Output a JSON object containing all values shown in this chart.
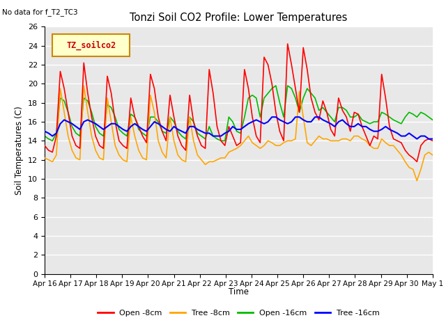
{
  "title": "Tonzi Soil CO2 Profile: Lower Temperatures",
  "subtitle": "No data for f_T2_TC3",
  "xlabel": "Time",
  "ylabel": "Soil Temperatures (C)",
  "ylim": [
    0,
    26
  ],
  "yticks": [
    0,
    2,
    4,
    6,
    8,
    10,
    12,
    14,
    16,
    18,
    20,
    22,
    24,
    26
  ],
  "bg_color": "#e8e8e8",
  "legend_label": "TZ_soilco2",
  "series_labels": [
    "Open -8cm",
    "Tree -8cm",
    "Open -16cm",
    "Tree -16cm"
  ],
  "series_colors": [
    "#ff0000",
    "#ffa500",
    "#00bb00",
    "#0000ff"
  ],
  "xtick_labels": [
    "Apr 16",
    "Apr 17",
    "Apr 18",
    "Apr 19",
    "Apr 20",
    "Apr 21",
    "Apr 22",
    "Apr 23",
    "Apr 24",
    "Apr 25",
    "Apr 26",
    "Apr 27",
    "Apr 28",
    "Apr 29",
    "Apr 30",
    "May 1"
  ],
  "open_8cm": [
    13.5,
    13.0,
    12.8,
    14.5,
    21.3,
    19.5,
    17.0,
    14.5,
    13.5,
    13.2,
    22.2,
    19.0,
    16.5,
    14.5,
    13.5,
    13.2,
    20.8,
    19.0,
    16.0,
    14.0,
    13.5,
    13.2,
    18.5,
    16.5,
    15.5,
    14.5,
    13.8,
    21.0,
    19.5,
    16.5,
    15.0,
    14.0,
    18.8,
    16.5,
    14.5,
    13.5,
    13.0,
    18.8,
    16.0,
    14.5,
    13.5,
    13.2,
    21.5,
    19.0,
    15.5,
    14.0,
    13.5,
    15.5,
    14.5,
    13.5,
    13.8,
    21.5,
    19.5,
    16.5,
    14.5,
    13.8,
    22.8,
    22.0,
    20.0,
    17.0,
    15.0,
    14.0,
    24.2,
    22.0,
    19.5,
    17.0,
    23.8,
    21.5,
    18.5,
    17.0,
    16.2,
    18.2,
    17.0,
    15.2,
    14.5,
    18.5,
    17.2,
    16.5,
    15.0,
    17.0,
    16.8,
    15.5,
    14.5,
    13.5,
    14.5,
    14.2,
    21.0,
    18.5,
    15.5,
    14.2,
    14.0,
    13.8,
    13.0,
    12.5,
    12.2,
    11.8,
    13.5,
    14.0,
    14.2,
    14.0
  ],
  "tree_8cm": [
    12.2,
    12.0,
    11.8,
    12.5,
    19.5,
    17.0,
    14.5,
    13.0,
    12.2,
    12.0,
    19.8,
    17.0,
    14.5,
    13.0,
    12.2,
    12.0,
    18.5,
    16.0,
    13.5,
    12.5,
    12.0,
    11.8,
    16.5,
    14.5,
    13.0,
    12.2,
    12.0,
    18.8,
    17.0,
    14.0,
    12.8,
    12.2,
    16.5,
    14.0,
    12.5,
    12.0,
    11.8,
    16.5,
    14.0,
    12.5,
    12.0,
    11.5,
    11.8,
    11.8,
    12.0,
    12.2,
    12.2,
    12.8,
    13.0,
    13.2,
    13.5,
    14.0,
    14.5,
    13.8,
    13.5,
    13.2,
    13.5,
    14.0,
    13.8,
    13.5,
    13.5,
    13.8,
    14.0,
    14.0,
    14.2,
    19.2,
    16.5,
    13.8,
    13.5,
    14.0,
    14.5,
    14.2,
    14.2,
    14.0,
    14.0,
    14.0,
    14.2,
    14.2,
    14.0,
    14.5,
    14.5,
    14.2,
    14.0,
    13.5,
    13.2,
    13.2,
    14.2,
    13.8,
    13.5,
    13.5,
    13.0,
    12.5,
    11.8,
    11.2,
    11.0,
    9.8,
    11.0,
    12.5,
    12.8,
    12.5
  ],
  "open_16cm": [
    14.5,
    14.2,
    14.0,
    14.8,
    18.5,
    18.2,
    17.0,
    15.5,
    14.8,
    14.5,
    18.5,
    18.2,
    17.0,
    15.5,
    14.8,
    14.5,
    17.8,
    17.5,
    16.5,
    15.2,
    14.8,
    14.5,
    16.8,
    16.5,
    15.2,
    14.8,
    14.5,
    16.5,
    16.5,
    16.0,
    15.0,
    14.8,
    16.5,
    16.0,
    15.0,
    14.5,
    14.2,
    16.5,
    16.0,
    14.8,
    14.5,
    14.2,
    15.5,
    14.5,
    14.2,
    14.0,
    14.0,
    16.5,
    16.0,
    15.0,
    14.8,
    16.5,
    18.5,
    18.8,
    18.5,
    16.5,
    18.5,
    19.0,
    19.5,
    19.8,
    18.0,
    16.5,
    19.8,
    19.5,
    18.5,
    17.0,
    18.5,
    19.5,
    19.0,
    18.5,
    17.2,
    17.5,
    17.0,
    16.5,
    16.0,
    17.5,
    17.5,
    17.2,
    16.5,
    16.5,
    16.8,
    16.2,
    16.0,
    15.8,
    16.0,
    16.0,
    17.0,
    16.8,
    16.5,
    16.2,
    16.0,
    15.8,
    16.5,
    17.0,
    16.8,
    16.5,
    17.0,
    16.8,
    16.5,
    16.2
  ],
  "tree_16cm": [
    15.0,
    14.8,
    14.5,
    14.8,
    15.8,
    16.2,
    16.0,
    15.8,
    15.5,
    15.2,
    16.0,
    16.2,
    16.0,
    15.8,
    15.5,
    15.2,
    15.5,
    15.8,
    15.8,
    15.5,
    15.2,
    15.0,
    15.5,
    15.8,
    15.5,
    15.2,
    15.0,
    15.5,
    16.0,
    15.8,
    15.5,
    15.2,
    15.0,
    15.5,
    15.2,
    15.0,
    14.8,
    15.5,
    15.5,
    15.2,
    15.0,
    14.8,
    14.8,
    14.5,
    14.5,
    14.5,
    14.8,
    15.0,
    15.5,
    15.2,
    15.2,
    15.5,
    15.8,
    16.0,
    16.2,
    16.0,
    15.8,
    16.0,
    16.5,
    16.5,
    16.2,
    16.0,
    15.8,
    16.0,
    16.5,
    16.5,
    16.2,
    16.0,
    16.0,
    16.5,
    16.5,
    16.2,
    16.0,
    15.8,
    15.5,
    16.0,
    16.2,
    15.8,
    15.5,
    15.5,
    15.8,
    15.5,
    15.5,
    15.2,
    15.0,
    15.0,
    15.2,
    15.5,
    15.2,
    15.0,
    14.8,
    14.5,
    14.5,
    14.8,
    14.5,
    14.2,
    14.5,
    14.5,
    14.2,
    14.2
  ]
}
